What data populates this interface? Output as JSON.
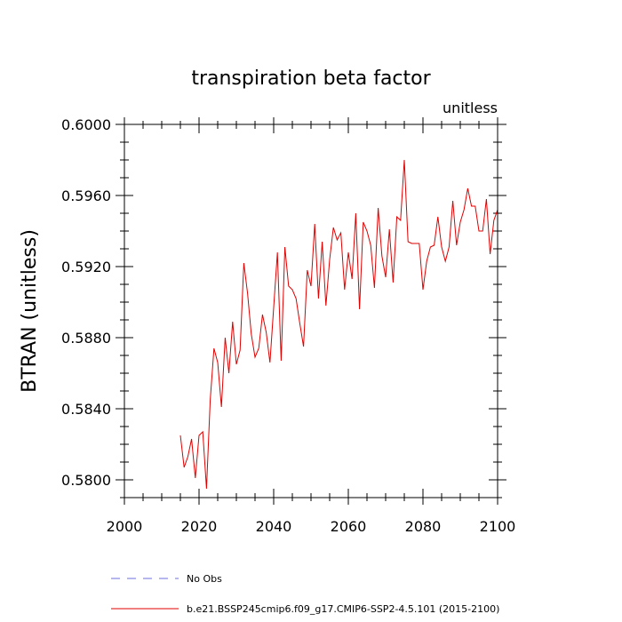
{
  "chart_data": {
    "type": "line",
    "title": "transpiration beta factor",
    "units_label": "unitless",
    "ylabel": "BTRAN  (unitless)",
    "xlabel": "",
    "xlim": [
      2000,
      2100
    ],
    "ylim": [
      0.579,
      0.6
    ],
    "x_ticks": [
      2000,
      2020,
      2040,
      2060,
      2080,
      2100
    ],
    "x_tick_labels": [
      "2000",
      "2020",
      "2040",
      "2060",
      "2080",
      "2100"
    ],
    "y_ticks": [
      0.58,
      0.584,
      0.588,
      0.592,
      0.596,
      0.6
    ],
    "y_tick_labels": [
      "0.5800",
      "0.5840",
      "0.5880",
      "0.5920",
      "0.5960",
      "0.6000"
    ],
    "grid": false,
    "legend_position": "bottom-left",
    "series": [
      {
        "name": "No Obs",
        "color": "#6f6fe0",
        "style": "dashed",
        "x": [],
        "y": []
      },
      {
        "name": "b.e21.BSSP245cmip6.f09_g17.CMIP6-SSP2-4.5.101 (2015-2100)",
        "color": "#e00000",
        "style": "solid",
        "x": [
          2015,
          2016,
          2017,
          2018,
          2019,
          2020,
          2021,
          2022,
          2023,
          2024,
          2025,
          2026,
          2027,
          2028,
          2029,
          2030,
          2031,
          2032,
          2033,
          2034,
          2035,
          2036,
          2037,
          2038,
          2039,
          2040,
          2041,
          2042,
          2043,
          2044,
          2045,
          2046,
          2047,
          2048,
          2049,
          2050,
          2051,
          2052,
          2053,
          2054,
          2055,
          2056,
          2057,
          2058,
          2059,
          2060,
          2061,
          2062,
          2063,
          2064,
          2065,
          2066,
          2067,
          2068,
          2069,
          2070,
          2071,
          2072,
          2073,
          2074,
          2075,
          2076,
          2077,
          2078,
          2079,
          2080,
          2081,
          2082,
          2083,
          2084,
          2085,
          2086,
          2087,
          2088,
          2089,
          2090,
          2091,
          2092,
          2093,
          2094,
          2095,
          2096,
          2097,
          2098,
          2099,
          2100
        ],
        "y": [
          0.5825,
          0.5807,
          0.5813,
          0.5823,
          0.5801,
          0.5825,
          0.5827,
          0.5795,
          0.5845,
          0.5874,
          0.5866,
          0.5841,
          0.588,
          0.586,
          0.5889,
          0.5865,
          0.5873,
          0.5922,
          0.5905,
          0.5882,
          0.5869,
          0.5874,
          0.5893,
          0.5883,
          0.5866,
          0.5897,
          0.5928,
          0.5867,
          0.5931,
          0.5909,
          0.5907,
          0.5902,
          0.5888,
          0.5875,
          0.5918,
          0.5909,
          0.5944,
          0.5902,
          0.5934,
          0.5898,
          0.5924,
          0.5942,
          0.5935,
          0.5939,
          0.5907,
          0.5928,
          0.5913,
          0.595,
          0.5896,
          0.5945,
          0.594,
          0.5932,
          0.5908,
          0.5953,
          0.5926,
          0.5914,
          0.5941,
          0.5911,
          0.5948,
          0.5946,
          0.598,
          0.5934,
          0.5933,
          0.5933,
          0.5933,
          0.5907,
          0.5923,
          0.5931,
          0.5932,
          0.5948,
          0.5931,
          0.5923,
          0.5931,
          0.5957,
          0.5932,
          0.5945,
          0.5952,
          0.5964,
          0.5954,
          0.5954,
          0.594,
          0.594,
          0.5958,
          0.5927,
          0.5946,
          0.5952
        ]
      }
    ]
  }
}
